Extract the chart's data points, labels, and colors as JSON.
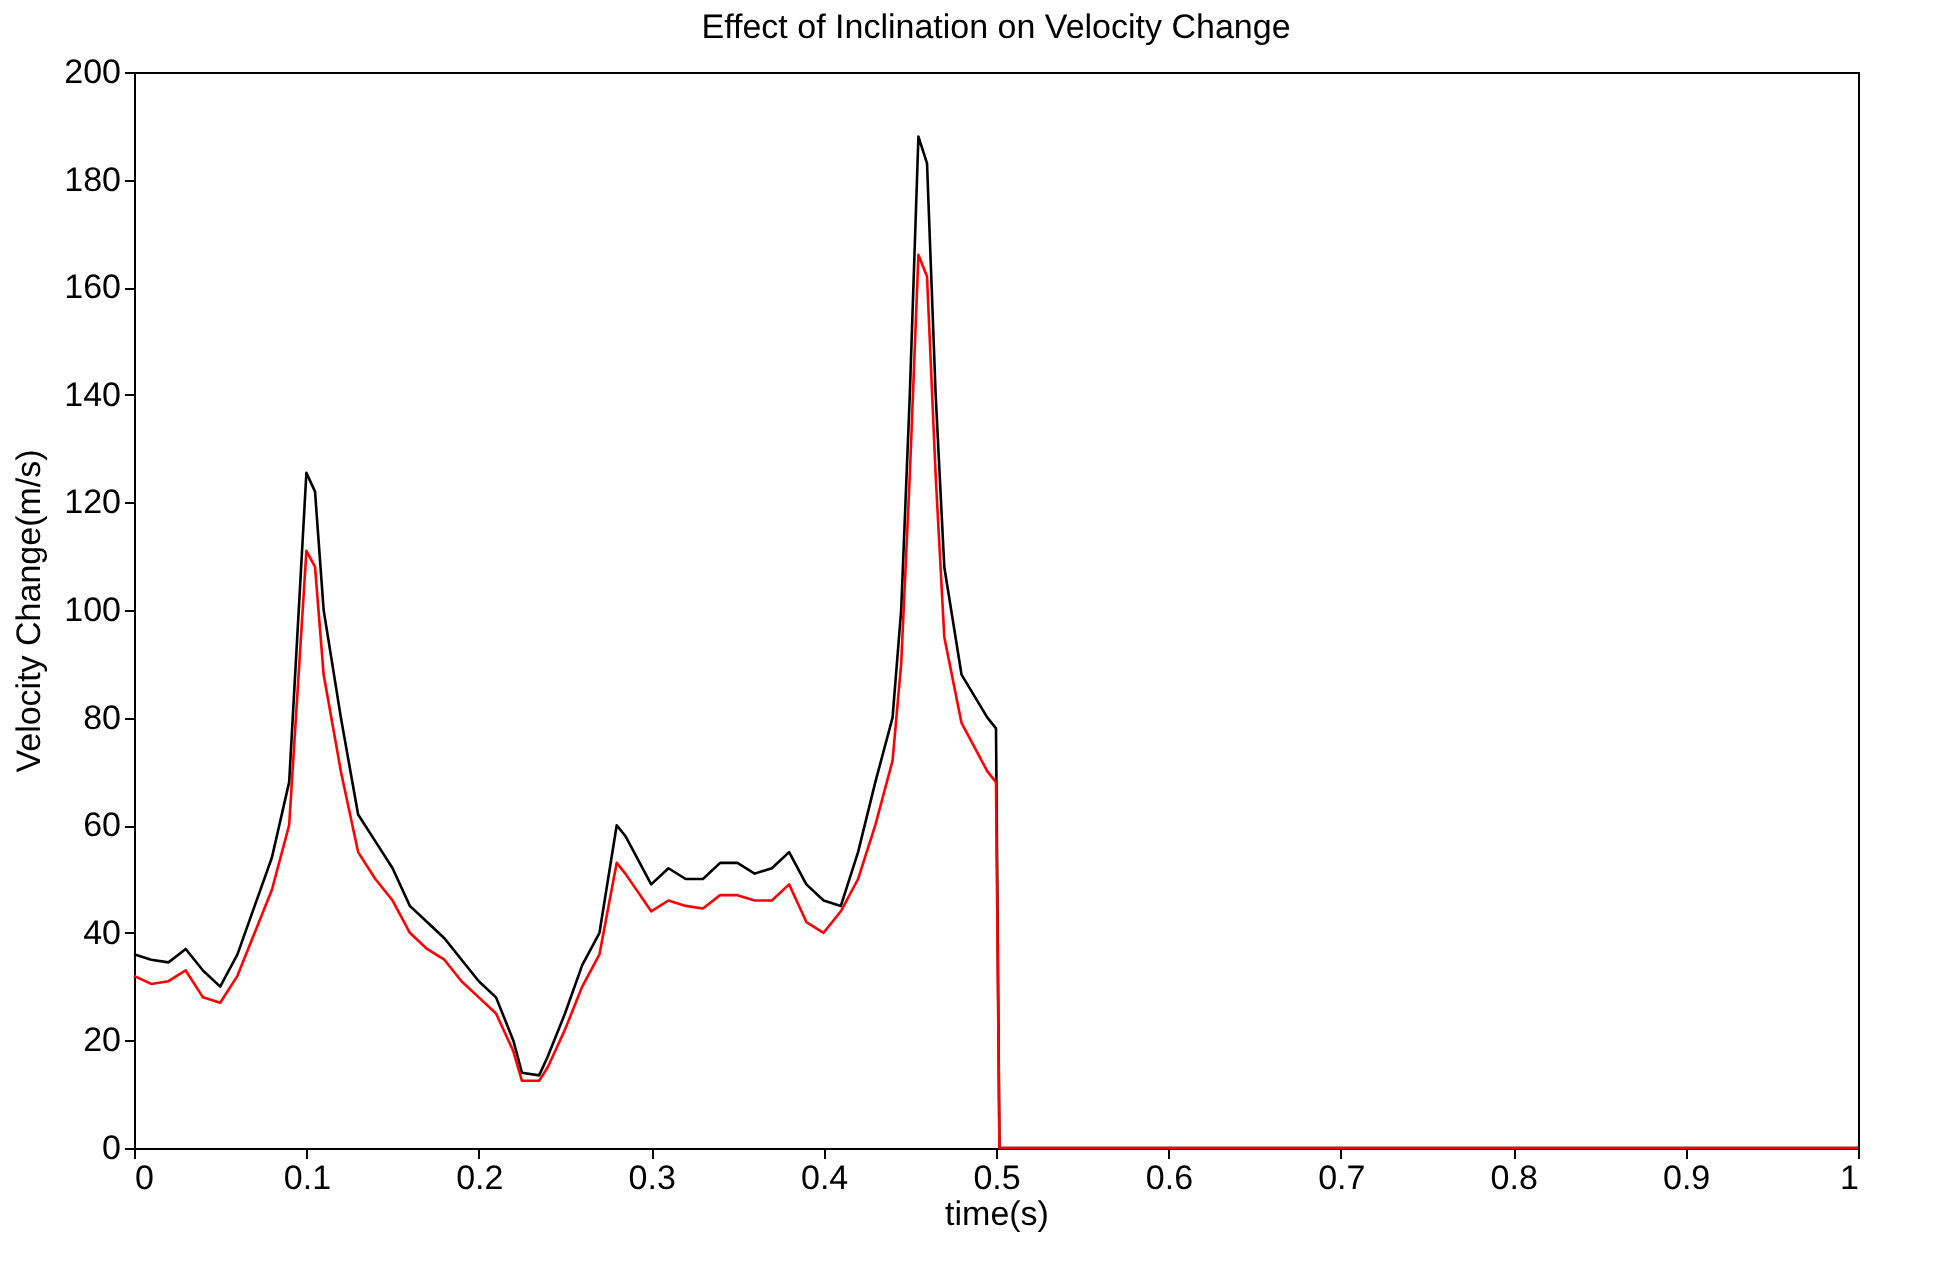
{
  "chart_data": {
    "type": "line",
    "title": "Effect of Inclination on Velocity Change",
    "xlabel": "time(s)",
    "ylabel": "Velocity Change(m/s)",
    "xlim": [
      0,
      1
    ],
    "ylim": [
      0,
      200
    ],
    "xticks": [
      0,
      0.1,
      0.2,
      0.3,
      0.4,
      0.5,
      0.6,
      0.7,
      0.8,
      0.9,
      1
    ],
    "yticks": [
      0,
      20,
      40,
      60,
      80,
      100,
      120,
      140,
      160,
      180,
      200
    ],
    "grid": false,
    "marker": "none",
    "line_style": "solid",
    "x": [
      0,
      0.01,
      0.02,
      0.03,
      0.04,
      0.05,
      0.06,
      0.07,
      0.08,
      0.09,
      0.1,
      0.105,
      0.11,
      0.12,
      0.13,
      0.14,
      0.15,
      0.16,
      0.17,
      0.18,
      0.19,
      0.2,
      0.21,
      0.22,
      0.225,
      0.235,
      0.24,
      0.25,
      0.26,
      0.27,
      0.28,
      0.285,
      0.3,
      0.31,
      0.32,
      0.33,
      0.34,
      0.35,
      0.36,
      0.37,
      0.38,
      0.39,
      0.4,
      0.41,
      0.42,
      0.43,
      0.44,
      0.445,
      0.45,
      0.455,
      0.46,
      0.465,
      0.47,
      0.48,
      0.495,
      0.5,
      0.502,
      0.6,
      0.7,
      0.8,
      0.9,
      1
    ],
    "series": [
      {
        "color": "#000000",
        "values": [
          36,
          35,
          34.5,
          37,
          33,
          30,
          36,
          45,
          54,
          68,
          125.5,
          122,
          100,
          80,
          62,
          57,
          52,
          45,
          42,
          39,
          35,
          31,
          28,
          20,
          14,
          13.5,
          17,
          25,
          34,
          40,
          60,
          58,
          49,
          52,
          50,
          50,
          53,
          53,
          51,
          52,
          55,
          49,
          46,
          45,
          55,
          68,
          80,
          100,
          140,
          188,
          183,
          140,
          108,
          88,
          80,
          78,
          0,
          0,
          0,
          0,
          0,
          0
        ]
      },
      {
        "color": "#ff0000",
        "values": [
          32,
          30.5,
          31,
          33,
          28,
          27,
          32,
          40,
          48,
          60,
          111,
          108,
          88,
          70,
          55,
          50,
          46,
          40,
          37,
          35,
          31,
          28,
          25,
          18,
          12.5,
          12.5,
          15,
          22,
          30,
          36,
          53,
          51,
          44,
          46,
          45,
          44.5,
          47,
          47,
          46,
          46,
          49,
          42,
          40,
          44,
          50,
          60,
          72,
          90,
          125,
          166,
          162,
          125,
          95,
          79,
          70,
          68,
          0,
          0,
          0,
          0,
          0,
          0
        ]
      }
    ]
  }
}
